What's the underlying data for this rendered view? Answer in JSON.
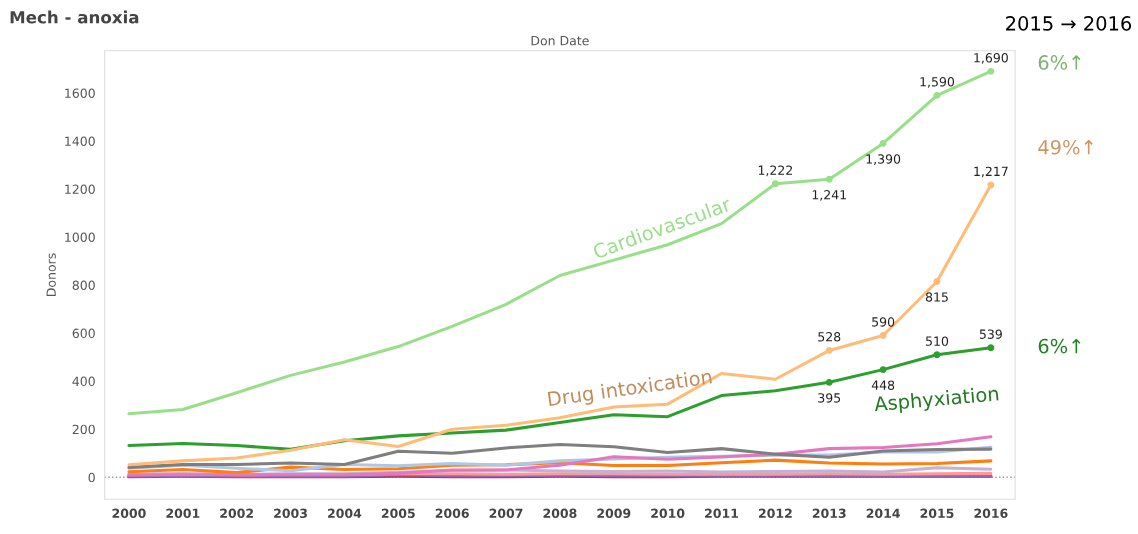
{
  "chart_data": {
    "type": "line",
    "title": "Mech - anoxia",
    "xlabel": "Don Date",
    "ylabel": "Donors",
    "categories": [
      "2000",
      "2001",
      "2002",
      "2003",
      "2004",
      "2005",
      "2006",
      "2007",
      "2008",
      "2009",
      "2010",
      "2011",
      "2012",
      "2013",
      "2014",
      "2015",
      "2016"
    ],
    "series": [
      {
        "name": "Cardiovascular",
        "color": "#98df8a",
        "values": [
          264,
          282,
          352,
          424,
          480,
          544,
          628,
          720,
          840,
          904,
          968,
          1056,
          1222,
          1241,
          1390,
          1590,
          1690
        ],
        "value_labels": [
          null,
          null,
          null,
          null,
          null,
          null,
          null,
          null,
          null,
          null,
          null,
          null,
          "1,222",
          "1,241",
          "1,390",
          "1,590",
          "1,690"
        ]
      },
      {
        "name": "Drug intoxication",
        "color": "#ffbb78",
        "values": [
          52,
          68,
          80,
          112,
          156,
          128,
          200,
          216,
          248,
          292,
          304,
          432,
          408,
          528,
          590,
          815,
          1217
        ],
        "value_labels": [
          null,
          null,
          null,
          null,
          null,
          null,
          null,
          null,
          null,
          null,
          null,
          null,
          null,
          "528",
          "590",
          "815",
          "1,217"
        ]
      },
      {
        "name": "Asphyxiation",
        "color": "#2ca02c",
        "values": [
          132,
          140,
          132,
          116,
          152,
          172,
          184,
          196,
          228,
          260,
          252,
          340,
          360,
          395,
          448,
          510,
          539
        ],
        "value_labels": [
          null,
          null,
          null,
          null,
          null,
          null,
          null,
          null,
          null,
          null,
          null,
          null,
          null,
          "395",
          "448",
          "510",
          "539"
        ]
      },
      {
        "color": "#7f7f7f",
        "values": [
          41,
          53,
          53,
          59,
          53,
          108,
          100,
          122,
          136,
          127,
          103,
          119,
          96,
          83,
          109,
          115,
          117
        ]
      },
      {
        "color": "#e377c2",
        "values": [
          9,
          10,
          10,
          10,
          10,
          16,
          30,
          30,
          50,
          85,
          75,
          84,
          96,
          119,
          124,
          139,
          168
        ]
      },
      {
        "color": "#aec7e8",
        "values": [
          37,
          50,
          37,
          27,
          53,
          48,
          57,
          50,
          68,
          76,
          83,
          87,
          92,
          92,
          105,
          105,
          125
        ]
      },
      {
        "color": "#ff7f0e",
        "values": [
          23,
          32,
          19,
          42,
          32,
          35,
          50,
          52,
          60,
          49,
          49,
          60,
          71,
          59,
          55,
          57,
          68
        ]
      },
      {
        "color": "#c5b0d5",
        "values": [
          12,
          14,
          12,
          14,
          14,
          20,
          28,
          30,
          26,
          24,
          26,
          22,
          24,
          26,
          22,
          39,
          33
        ]
      },
      {
        "color": "#ff9896",
        "values": [
          12,
          14,
          10,
          12,
          12,
          14,
          14,
          12,
          14,
          14,
          12,
          12,
          12,
          14,
          12,
          14,
          16
        ]
      },
      {
        "color": "#9467bd",
        "values": [
          4,
          6,
          4,
          4,
          4,
          10,
          6,
          6,
          8,
          6,
          6,
          6,
          8,
          6,
          6,
          4,
          6
        ]
      },
      {
        "color": "#d62728",
        "values": [
          2,
          4,
          2,
          2,
          2,
          4,
          2,
          2,
          4,
          2,
          2,
          4,
          4,
          4,
          4,
          4,
          4
        ]
      }
    ],
    "ylim": [
      -92,
      1776
    ],
    "yticks": [
      0,
      200,
      400,
      600,
      800,
      1000,
      1200,
      1400,
      1600
    ],
    "ref_lines": [
      {
        "axis": "y",
        "value": 0,
        "line_style": "dotted",
        "color": "#999999"
      }
    ],
    "annotations": [
      "2015 → 2016",
      "6%↑",
      "49%↑",
      "6%↑"
    ],
    "grid": false,
    "legend": false
  }
}
